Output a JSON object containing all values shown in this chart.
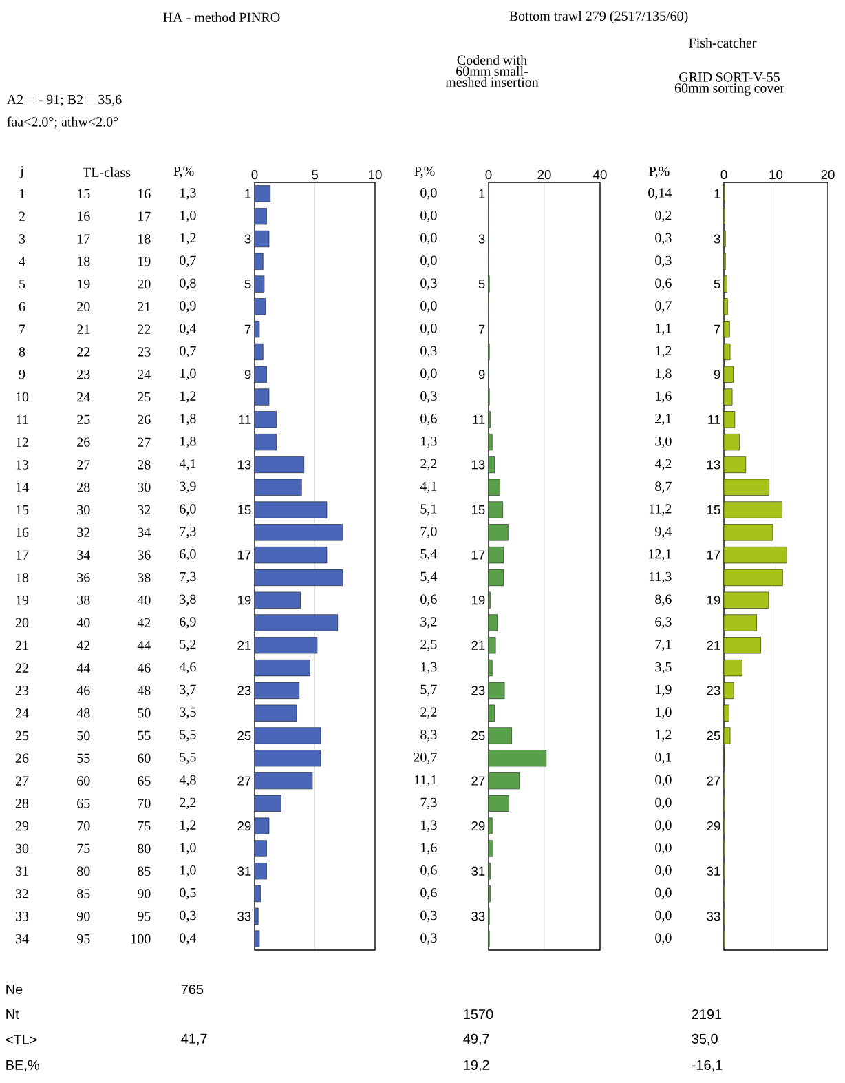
{
  "chart_data": [
    {
      "type": "bar",
      "orientation": "horizontal",
      "title": "HA - method PINRO",
      "categories": [
        "1",
        null,
        "3",
        null,
        "5",
        null,
        "7",
        null,
        "9",
        null,
        "11",
        null,
        "13",
        null,
        "15",
        null,
        "17",
        null,
        "19",
        null,
        "21",
        null,
        "23",
        null,
        "25",
        null,
        "27",
        null,
        "29",
        null,
        "31",
        null,
        "33",
        null
      ],
      "values": [
        1.3,
        1.0,
        1.2,
        0.7,
        0.8,
        0.9,
        0.4,
        0.7,
        1.0,
        1.2,
        1.8,
        1.8,
        4.1,
        3.9,
        6.0,
        7.3,
        6.0,
        7.3,
        3.8,
        6.9,
        5.2,
        4.6,
        3.7,
        3.5,
        5.5,
        5.5,
        4.8,
        2.2,
        1.2,
        1.0,
        1.0,
        0.5,
        0.3,
        0.4
      ],
      "value_labels": [
        "1,3",
        "1,0",
        "1,2",
        "0,7",
        "0,8",
        "0,9",
        "0,4",
        "0,7",
        "1,0",
        "1,2",
        "1,8",
        "1,8",
        "4,1",
        "3,9",
        "6,0",
        "7,3",
        "6,0",
        "7,3",
        "3,8",
        "6,9",
        "5,2",
        "4,6",
        "3,7",
        "3,5",
        "5,5",
        "5,5",
        "4,8",
        "2,2",
        "1,2",
        "1,0",
        "1,0",
        "0,5",
        "0,3",
        "0,4"
      ],
      "color": "#4a66b8",
      "xlim": [
        0,
        10
      ],
      "xticks": [
        0,
        5,
        10
      ],
      "grid": "x",
      "annotations": [
        "A2 = - 91; B2 = 35,6",
        "faa<2.0°; athw<2.0°",
        "P,%",
        "j",
        "TL-class",
        "1",
        "15",
        "16",
        "2",
        "16",
        "17",
        "3",
        "17",
        "18",
        "4",
        "18",
        "19",
        "5",
        "19",
        "20",
        "6",
        "20",
        "21",
        "7",
        "21",
        "22",
        "8",
        "22",
        "23",
        "9",
        "23",
        "24",
        "10",
        "24",
        "25",
        "11",
        "25",
        "26",
        "12",
        "26",
        "27",
        "13",
        "27",
        "28",
        "14",
        "28",
        "30",
        "15",
        "30",
        "32",
        "16",
        "32",
        "34",
        "17",
        "34",
        "36",
        "18",
        "36",
        "38",
        "19",
        "38",
        "40",
        "20",
        "40",
        "42",
        "21",
        "42",
        "44",
        "22",
        "44",
        "46",
        "23",
        "46",
        "48",
        "24",
        "48",
        "50",
        "25",
        "50",
        "55",
        "26",
        "55",
        "60",
        "27",
        "60",
        "65",
        "28",
        "65",
        "70",
        "29",
        "70",
        "75",
        "30",
        "75",
        "80",
        "31",
        "80",
        "85",
        "32",
        "85",
        "90",
        "33",
        "90",
        "95",
        "34",
        "95",
        "100",
        "Ne",
        "Nt",
        "<TL>",
        "BE,%",
        "765",
        "41,7"
      ]
    },
    {
      "type": "bar",
      "orientation": "horizontal",
      "title": "Bottom trawl 279 (2517/135/60)",
      "subtitle": "Codend with 60mm small-meshed insertion",
      "categories": [
        "1",
        null,
        "3",
        null,
        "5",
        null,
        "7",
        null,
        "9",
        null,
        "11",
        null,
        "13",
        null,
        "15",
        null,
        "17",
        null,
        "19",
        null,
        "21",
        null,
        "23",
        null,
        "25",
        null,
        "27",
        null,
        "29",
        null,
        "31",
        null,
        "33",
        null
      ],
      "values": [
        0.0,
        0.0,
        0.0,
        0.0,
        0.3,
        0.0,
        0.0,
        0.3,
        0.0,
        0.3,
        0.6,
        1.3,
        2.2,
        4.1,
        5.1,
        7.0,
        5.4,
        5.4,
        0.6,
        3.2,
        2.5,
        1.3,
        5.7,
        2.2,
        8.3,
        20.7,
        11.1,
        7.3,
        1.3,
        1.6,
        0.6,
        0.6,
        0.3,
        0.3
      ],
      "value_labels": [
        "0,0",
        "0,0",
        "0,0",
        "0,0",
        "0,3",
        "0,0",
        "0,0",
        "0,3",
        "0,0",
        "0,3",
        "0,6",
        "1,3",
        "2,2",
        "4,1",
        "5,1",
        "7,0",
        "5,4",
        "5,4",
        "0,6",
        "3,2",
        "2,5",
        "1,3",
        "5,7",
        "2,2",
        "8,3",
        "20,7",
        "11,1",
        "7,3",
        "1,3",
        "1,6",
        "0,6",
        "0,6",
        "0,3",
        "0,3"
      ],
      "color": "#5aa04a",
      "xlim": [
        0,
        40
      ],
      "xticks": [
        0,
        20,
        40
      ],
      "grid": "x",
      "annotations": [
        "P,%",
        "1570",
        "49,7",
        "19,2"
      ]
    },
    {
      "type": "bar",
      "orientation": "horizontal",
      "title": "Fish-catcher",
      "subtitle": "GRID SORT-V-55 60mm sorting cover",
      "categories": [
        "1",
        null,
        "3",
        null,
        "5",
        null,
        "7",
        null,
        "9",
        null,
        "11",
        null,
        "13",
        null,
        "15",
        null,
        "17",
        null,
        "19",
        null,
        "21",
        null,
        "23",
        null,
        "25",
        null,
        "27",
        null,
        "29",
        null,
        "31",
        null,
        "33",
        null
      ],
      "values": [
        0.14,
        0.2,
        0.3,
        0.3,
        0.6,
        0.7,
        1.1,
        1.2,
        1.8,
        1.6,
        2.1,
        3.0,
        4.2,
        8.7,
        11.2,
        9.4,
        12.1,
        11.3,
        8.6,
        6.3,
        7.1,
        3.5,
        1.9,
        1.0,
        1.2,
        0.1,
        0.0,
        0.0,
        0.0,
        0.0,
        0.0,
        0.0,
        0.0,
        0.0
      ],
      "value_labels": [
        "0,14",
        "0,2",
        "0,3",
        "0,3",
        "0,6",
        "0,7",
        "1,1",
        "1,2",
        "1,8",
        "1,6",
        "2,1",
        "3,0",
        "4,2",
        "8,7",
        "11,2",
        "9,4",
        "12,1",
        "11,3",
        "8,6",
        "6,3",
        "7,1",
        "3,5",
        "1,9",
        "1,0",
        "1,2",
        "0,1",
        "0,0",
        "0,0",
        "0,0",
        "0,0",
        "0,0",
        "0,0",
        "0,0",
        "0,0"
      ],
      "color": "#a8c21a",
      "xlim": [
        0,
        20
      ],
      "xticks": [
        0,
        10,
        20
      ],
      "grid": "x",
      "annotations": [
        "P,%",
        "2191",
        "35,0",
        "-16,1"
      ]
    }
  ]
}
